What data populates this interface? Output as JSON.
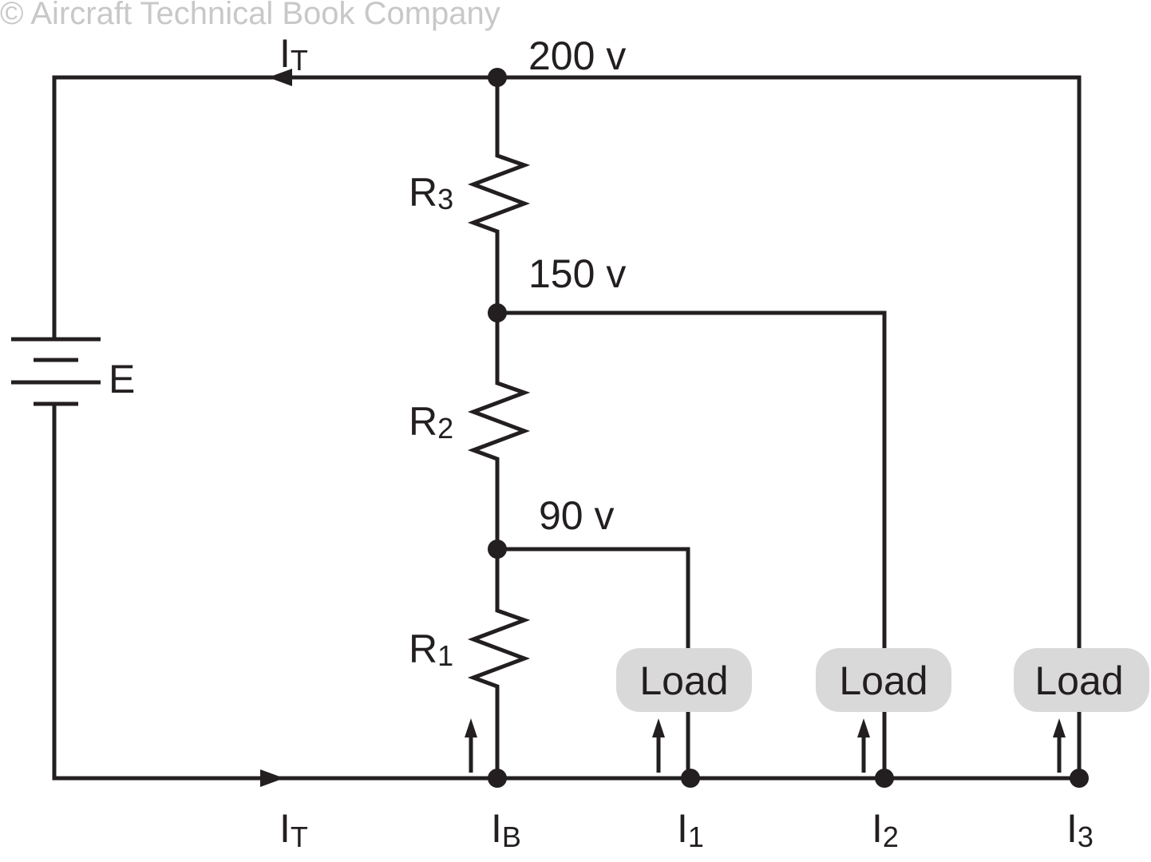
{
  "watermark": "© Aircraft Technical Book Company",
  "colors": {
    "wire": "#231f20",
    "load_fill": "#d9d9da",
    "watermark": "#c8c8c8"
  },
  "battery": {
    "label": "E"
  },
  "voltages": {
    "top": "200 v",
    "mid": "150 v",
    "low": "90 v"
  },
  "resistors": [
    {
      "main": "R",
      "sub": "3"
    },
    {
      "main": "R",
      "sub": "2"
    },
    {
      "main": "R",
      "sub": "1"
    }
  ],
  "loads": [
    "Load",
    "Load",
    "Load"
  ],
  "currents": {
    "top_total": {
      "main": "I",
      "sub": "T"
    },
    "bottom_total": {
      "main": "I",
      "sub": "T"
    },
    "bleeder": {
      "main": "I",
      "sub": "B"
    },
    "i1": {
      "main": "I",
      "sub": "1"
    },
    "i2": {
      "main": "I",
      "sub": "2"
    },
    "i3": {
      "main": "I",
      "sub": "3"
    }
  }
}
